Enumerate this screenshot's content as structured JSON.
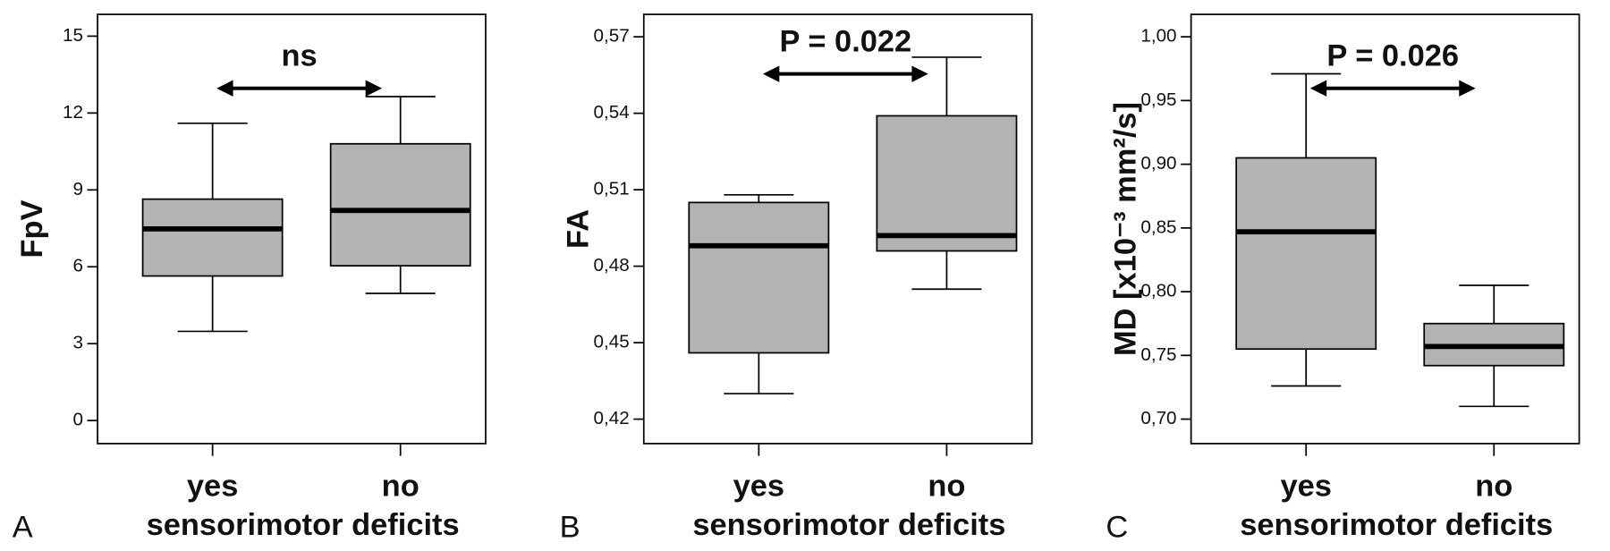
{
  "chart_data": [
    {
      "type": "box",
      "panel_label": "A",
      "ylabel": "FpV",
      "xlabel": "sensorimotor deficits",
      "annotation": "ns",
      "categories": [
        "yes",
        "no"
      ],
      "color": "#b3b3b3",
      "boxes": [
        {
          "min": 3.48,
          "q1": 5.64,
          "median": 7.48,
          "q3": 8.64,
          "max": 11.6
        },
        {
          "min": 4.96,
          "q1": 6.04,
          "median": 8.2,
          "q3": 10.8,
          "max": 12.64
        }
      ],
      "ylim": [
        -0.9,
        15.85
      ],
      "yticks": [
        0,
        3,
        6,
        9,
        12,
        15
      ]
    },
    {
      "type": "box",
      "panel_label": "B",
      "ylabel": "FA",
      "xlabel": "sensorimotor deficits",
      "annotation": "P = 0.022",
      "categories": [
        "yes",
        "no"
      ],
      "color": "#b3b3b3",
      "boxes": [
        {
          "min": 0.43,
          "q1": 0.446,
          "median": 0.488,
          "q3": 0.505,
          "max": 0.508
        },
        {
          "min": 0.471,
          "q1": 0.486,
          "median": 0.492,
          "q3": 0.539,
          "max": 0.562
        }
      ],
      "ylim": [
        0.4104,
        0.5788
      ],
      "yticks": [
        {
          "value": 0.42,
          "label": "0,42"
        },
        {
          "value": 0.45,
          "label": "0,45"
        },
        {
          "value": 0.48,
          "label": "0,48"
        },
        {
          "value": 0.51,
          "label": "0,51"
        },
        {
          "value": 0.54,
          "label": "0,54"
        },
        {
          "value": 0.57,
          "label": "0,57"
        }
      ]
    },
    {
      "type": "box",
      "panel_label": "C",
      "ylabel": "MD [x10⁻³ mm²/s]",
      "xlabel": "sensorimotor deficits",
      "annotation": "P = 0.026",
      "categories": [
        "yes",
        "no"
      ],
      "color": "#b3b3b3",
      "boxes": [
        {
          "min": 0.726,
          "q1": 0.755,
          "median": 0.847,
          "q3": 0.905,
          "max": 0.971
        },
        {
          "min": 0.71,
          "q1": 0.742,
          "median": 0.757,
          "q3": 0.775,
          "max": 0.805
        }
      ],
      "ylim": [
        0.6808,
        1.0176
      ],
      "yticks": [
        {
          "value": 0.7,
          "label": "0,70"
        },
        {
          "value": 0.75,
          "label": "0,75"
        },
        {
          "value": 0.8,
          "label": "0,80"
        },
        {
          "value": 0.85,
          "label": "0,85"
        },
        {
          "value": 0.9,
          "label": "0,90"
        },
        {
          "value": 0.95,
          "label": "0,95"
        },
        {
          "value": 1.0,
          "label": "1,00"
        }
      ]
    }
  ]
}
